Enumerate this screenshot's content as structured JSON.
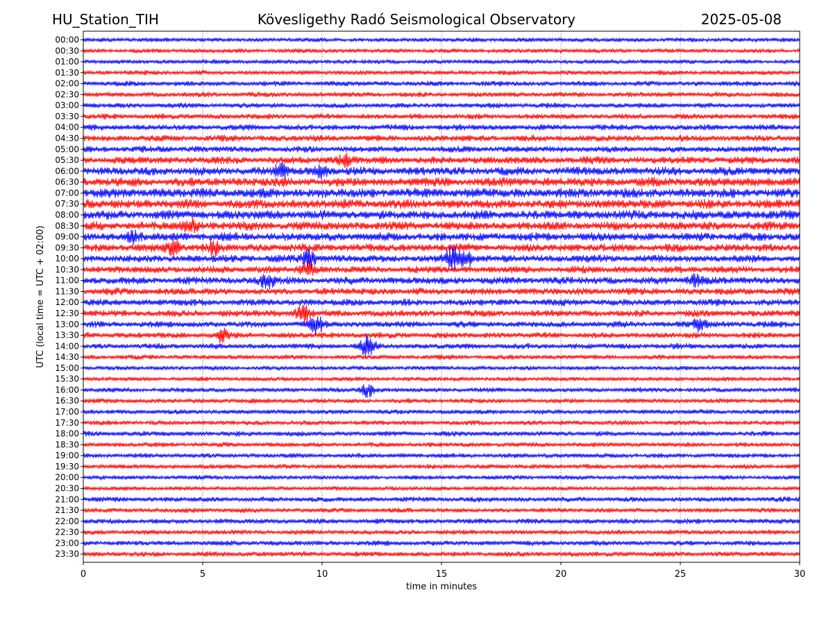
{
  "header": {
    "station": "HU_Station_TIH",
    "observatory": "Kövesligethy Radó Seismological Observatory",
    "date": "2025-05-08"
  },
  "chart_data": {
    "type": "line",
    "title": "Kövesligethy Radó Seismological Observatory",
    "xlabel": "time in minutes",
    "ylabel": "UTC (local time = UTC + 02:00)",
    "xlim": [
      0,
      30
    ],
    "xticks": [
      0,
      5,
      10,
      15,
      20,
      25,
      30
    ],
    "grid": "vertical dotted lines at x ticks",
    "series_colors": [
      "#0000ff",
      "#ff0000"
    ],
    "row_labels": [
      "00:00",
      "00:30",
      "01:00",
      "01:30",
      "02:00",
      "02:30",
      "03:00",
      "03:30",
      "04:00",
      "04:30",
      "05:00",
      "05:30",
      "06:00",
      "06:30",
      "07:00",
      "07:30",
      "08:00",
      "08:30",
      "09:00",
      "09:30",
      "10:00",
      "10:30",
      "11:00",
      "11:30",
      "12:00",
      "12:30",
      "13:00",
      "13:30",
      "14:00",
      "14:30",
      "15:00",
      "15:30",
      "16:00",
      "16:30",
      "17:00",
      "17:30",
      "18:00",
      "18:30",
      "19:00",
      "19:30",
      "20:00",
      "20:30",
      "21:00",
      "21:30",
      "22:00",
      "22:30",
      "23:00",
      "23:30"
    ],
    "row_noise_level": [
      0.55,
      0.55,
      0.55,
      0.6,
      0.65,
      0.65,
      0.65,
      0.7,
      0.75,
      0.8,
      0.8,
      0.95,
      1.05,
      1.15,
      1.2,
      1.15,
      1.15,
      1.1,
      1.05,
      1.0,
      0.95,
      0.9,
      0.95,
      0.9,
      0.85,
      0.85,
      0.8,
      0.75,
      0.7,
      0.6,
      0.55,
      0.55,
      0.6,
      0.6,
      0.6,
      0.6,
      0.65,
      0.6,
      0.6,
      0.6,
      0.55,
      0.55,
      0.65,
      0.6,
      0.65,
      0.6,
      0.65,
      0.65
    ],
    "events": [
      {
        "row": "05:30",
        "minute": 11.0,
        "amplitude": 1.8
      },
      {
        "row": "06:00",
        "minute": 8.3,
        "amplitude": 1.5
      },
      {
        "row": "06:00",
        "minute": 10.0,
        "amplitude": 1.6
      },
      {
        "row": "08:30",
        "minute": 4.5,
        "amplitude": 1.5
      },
      {
        "row": "09:00",
        "minute": 2.1,
        "amplitude": 1.5
      },
      {
        "row": "09:30",
        "minute": 3.8,
        "amplitude": 2.2
      },
      {
        "row": "09:30",
        "minute": 5.5,
        "amplitude": 1.5
      },
      {
        "row": "10:00",
        "minute": 9.5,
        "amplitude": 2.2
      },
      {
        "row": "10:00",
        "minute": 15.5,
        "amplitude": 2.6
      },
      {
        "row": "10:00",
        "minute": 16.1,
        "amplitude": 2.3
      },
      {
        "row": "10:30",
        "minute": 9.4,
        "amplitude": 1.8
      },
      {
        "row": "11:00",
        "minute": 7.7,
        "amplitude": 1.8
      },
      {
        "row": "11:00",
        "minute": 25.6,
        "amplitude": 1.5
      },
      {
        "row": "12:30",
        "minute": 9.2,
        "amplitude": 2.6
      },
      {
        "row": "13:00",
        "minute": 9.8,
        "amplitude": 2.0
      },
      {
        "row": "13:00",
        "minute": 25.8,
        "amplitude": 1.6
      },
      {
        "row": "13:30",
        "minute": 5.8,
        "amplitude": 1.7
      },
      {
        "row": "14:00",
        "minute": 11.9,
        "amplitude": 2.6
      },
      {
        "row": "16:00",
        "minute": 11.9,
        "amplitude": 1.8
      }
    ]
  }
}
